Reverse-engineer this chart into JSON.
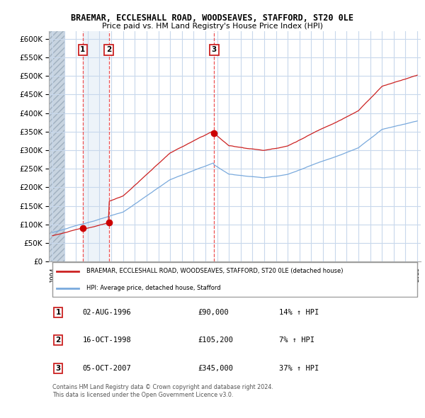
{
  "title": "BRAEMAR, ECCLESHALL ROAD, WOODSEAVES, STAFFORD, ST20 0LE",
  "subtitle": "Price paid vs. HM Land Registry's House Price Index (HPI)",
  "bg_color": "#ffffff",
  "chart_bg_color": "#ffffff",
  "col_highlight_color": "#dde8f5",
  "hatch_bg_color": "#c8d4e0",
  "grid_color": "#c8d8ec",
  "ylim": [
    0,
    620000
  ],
  "yticks": [
    0,
    50000,
    100000,
    150000,
    200000,
    250000,
    300000,
    350000,
    400000,
    450000,
    500000,
    550000,
    600000
  ],
  "ytick_labels": [
    "£0",
    "£50K",
    "£100K",
    "£150K",
    "£200K",
    "£250K",
    "£300K",
    "£350K",
    "£400K",
    "£450K",
    "£500K",
    "£550K",
    "£600K"
  ],
  "sale_prices": [
    90000,
    105200,
    345000
  ],
  "sale_labels": [
    "1",
    "2",
    "3"
  ],
  "vline_color": "#ee3333",
  "dot_color": "#cc0000",
  "hpi_line_color": "#7aaadd",
  "price_line_color": "#cc2222",
  "legend_label_price": "BRAEMAR, ECCLESHALL ROAD, WOODSEAVES, STAFFORD, ST20 0LE (detached house)",
  "legend_label_hpi": "HPI: Average price, detached house, Stafford",
  "table_entries": [
    {
      "num": "1",
      "date": "02-AUG-1996",
      "price": "£90,000",
      "hpi": "14% ↑ HPI"
    },
    {
      "num": "2",
      "date": "16-OCT-1998",
      "price": "£105,200",
      "hpi": "7% ↑ HPI"
    },
    {
      "num": "3",
      "date": "05-OCT-2007",
      "price": "£345,000",
      "hpi": "37% ↑ HPI"
    }
  ],
  "footer": "Contains HM Land Registry data © Crown copyright and database right 2024.\nThis data is licensed under the Open Government Licence v3.0.",
  "sale_year_vals": [
    1996.583,
    1998.792,
    2007.75
  ]
}
